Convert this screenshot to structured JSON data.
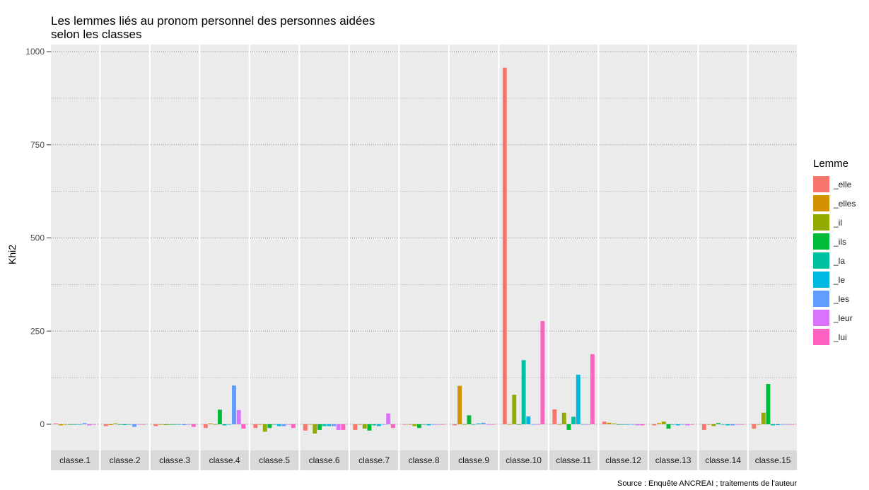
{
  "chart_data": {
    "type": "bar",
    "title_lines": [
      "Les lemmes liés au pronom personnel des personnes aidées",
      "selon les classes"
    ],
    "ylabel": "Khi2",
    "xlabel": "",
    "ylim": [
      -90,
      1000
    ],
    "yticks": [
      0,
      250,
      500,
      750,
      1000
    ],
    "caption": "Source : Enquête ANCREAI ; traitements de l'auteur",
    "legend_title": "Lemme",
    "legend_position": "right",
    "categories": [
      "classe.1",
      "classe.2",
      "classe.3",
      "classe.4",
      "classe.5",
      "classe.6",
      "classe.7",
      "classe.8",
      "classe.9",
      "classe.10",
      "classe.11",
      "classe.12",
      "classe.13",
      "classe.14",
      "classe.15"
    ],
    "series": [
      {
        "name": "_elle",
        "color": "#F8766D",
        "values": [
          2,
          -5,
          -5,
          -10,
          -10,
          -17,
          -15,
          0,
          -3,
          957,
          40,
          7,
          -3,
          -15,
          -12
        ]
      },
      {
        "name": "_elles",
        "color": "#D39200",
        "values": [
          -3,
          -2,
          0,
          2,
          0,
          0,
          0,
          0,
          103,
          0,
          0,
          4,
          3,
          0,
          0
        ]
      },
      {
        "name": "_il",
        "color": "#93AA00",
        "values": [
          0,
          2,
          -2,
          0,
          -20,
          -25,
          -12,
          -5,
          0,
          79,
          31,
          2,
          7,
          -5,
          31
        ]
      },
      {
        "name": "_ils",
        "color": "#00BA38",
        "values": [
          0,
          0,
          0,
          39,
          -10,
          -15,
          -17,
          -10,
          24,
          0,
          -15,
          0,
          -12,
          3,
          108
        ]
      },
      {
        "name": "_la",
        "color": "#00C19F",
        "values": [
          0,
          -2,
          0,
          -3,
          0,
          -5,
          -3,
          0,
          0,
          172,
          20,
          0,
          0,
          0,
          -3
        ]
      },
      {
        "name": "_le",
        "color": "#00B9E3",
        "values": [
          0,
          0,
          0,
          0,
          -5,
          -5,
          -5,
          -3,
          2,
          21,
          133,
          0,
          -3,
          -3,
          -2
        ]
      },
      {
        "name": "_les",
        "color": "#619CFF",
        "values": [
          3,
          -7,
          -2,
          104,
          -5,
          -5,
          0,
          0,
          4,
          0,
          0,
          0,
          0,
          -3,
          0
        ]
      },
      {
        "name": "_leur",
        "color": "#DB72FB",
        "values": [
          -3,
          0,
          0,
          38,
          0,
          -15,
          29,
          0,
          0,
          0,
          0,
          -3,
          -3,
          0,
          0
        ]
      },
      {
        "name": "_lui",
        "color": "#FF61C3",
        "values": [
          0,
          0,
          -7,
          -12,
          -10,
          -15,
          -10,
          0,
          0,
          277,
          188,
          -3,
          0,
          0,
          0
        ]
      }
    ]
  }
}
